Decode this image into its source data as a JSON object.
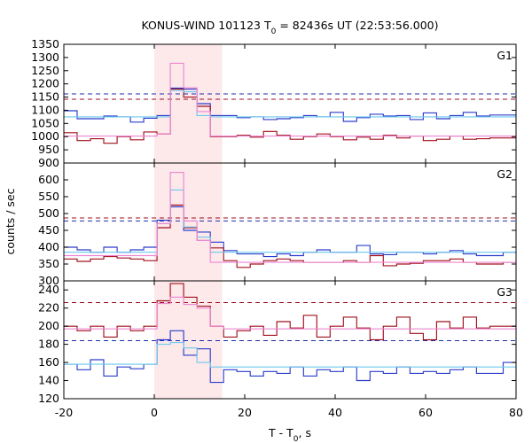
{
  "chart_data": {
    "type": "line",
    "title": {
      "main": "KONUS-WIND 101123 T",
      "sub": "0",
      "rest": " = 82436s UT (22:53:56.000)"
    },
    "xlabel": {
      "main": "T - T",
      "sub": "0",
      "rest": ", s"
    },
    "ylabel": "counts / sec",
    "xlim": [
      -20,
      80
    ],
    "x_ticks": [
      -20,
      0,
      20,
      40,
      60,
      80
    ],
    "highlight_interval": {
      "x": [
        0,
        15
      ],
      "color": "#fde8ea"
    },
    "bin_edges": [
      -20,
      -17.056,
      -14.112,
      -11.168,
      -8.224,
      -5.28,
      -2.336,
      0.608,
      3.552,
      6.496,
      9.44,
      12.384,
      15.328,
      18.272,
      21.216,
      24.16,
      27.104,
      30.048,
      32.992,
      35.936,
      38.88,
      41.824,
      44.768,
      47.712,
      50.656,
      53.6,
      56.544,
      59.488,
      62.432,
      65.376,
      68.32,
      71.264,
      74.208,
      77.152,
      80
    ],
    "colors": {
      "blue": "#2a3dcc",
      "dark_red": "#a0101c",
      "light_blue": "#6ec8ee",
      "pink": "#ee86d2"
    },
    "panels": [
      {
        "label": "G1",
        "ylim": [
          900,
          1350
        ],
        "y_ticks": [
          900,
          950,
          1000,
          1050,
          1100,
          1150,
          1200,
          1250,
          1300,
          1350
        ],
        "threshold_lines": [
          {
            "color": "#1a2fb0",
            "value": 1162
          },
          {
            "color": "#a0101c",
            "value": 1142
          }
        ],
        "series": [
          {
            "color": "#2a3dcc",
            "values": [
              1098,
              1068,
              1068,
              1078,
              1075,
              1055,
              1070,
              1080,
              1184,
              1180,
              1125,
              1080,
              1080,
              1072,
              1075,
              1065,
              1068,
              1072,
              1080,
              1075,
              1092,
              1058,
              1072,
              1085,
              1078,
              1080,
              1065,
              1090,
              1068,
              1080,
              1092,
              1078,
              1082,
              1082
            ]
          },
          {
            "color": "#a0101c",
            "values": [
              1015,
              985,
              992,
              975,
              1000,
              988,
              1018,
              1010,
              1180,
              1150,
              1115,
              1000,
              1000,
              1005,
              998,
              1020,
              1005,
              990,
              1000,
              1010,
              1000,
              988,
              998,
              990,
              1005,
              995,
              1002,
              985,
              990,
              1002,
              990,
              992,
              995,
              995
            ]
          },
          {
            "color": "#6ec8ee",
            "values": [
              1075,
              1075,
              1075,
              1075,
              1075,
              1075,
              1075,
              1075,
              1175,
              1170,
              1080,
              1075,
              1075,
              1075,
              1075,
              1075,
              1075,
              1075,
              1075,
              1075,
              1075,
              1075,
              1075,
              1075,
              1075,
              1075,
              1075,
              1075,
              1075,
              1075,
              1075,
              1075,
              1075,
              1075
            ]
          },
          {
            "color": "#ee86d2",
            "values": [
              1002,
              1002,
              1002,
              1002,
              1002,
              1002,
              1002,
              1010,
              1278,
              1185,
              1095,
              1002,
              1002,
              1002,
              1002,
              1002,
              1002,
              1002,
              1002,
              1002,
              1002,
              1002,
              1002,
              1002,
              1002,
              1002,
              1002,
              1002,
              1002,
              1002,
              1002,
              1002,
              1002,
              1002
            ]
          }
        ]
      },
      {
        "label": "G2",
        "ylim": [
          300,
          650
        ],
        "y_ticks": [
          300,
          350,
          400,
          450,
          500,
          550,
          600
        ],
        "threshold_lines": [
          {
            "color": "#1a2fb0",
            "value": 478
          },
          {
            "color": "#a0101c",
            "value": 487
          }
        ],
        "series": [
          {
            "color": "#2a3dcc",
            "values": [
              400,
              392,
              385,
              400,
              385,
              392,
              400,
              480,
              520,
              450,
              445,
              415,
              390,
              380,
              380,
              372,
              380,
              375,
              385,
              392,
              385,
              385,
              405,
              380,
              378,
              385,
              385,
              380,
              385,
              390,
              380,
              375,
              375,
              385
            ]
          },
          {
            "color": "#a0101c",
            "values": [
              365,
              358,
              365,
              372,
              368,
              365,
              360,
              458,
              525,
              458,
              420,
              398,
              360,
              340,
              350,
              360,
              365,
              360,
              355,
              355,
              355,
              360,
              355,
              375,
              345,
              350,
              352,
              360,
              360,
              365,
              355,
              350,
              350,
              355
            ]
          },
          {
            "color": "#6ec8ee",
            "values": [
              385,
              385,
              385,
              385,
              385,
              385,
              385,
              470,
              570,
              460,
              430,
              385,
              385,
              385,
              385,
              385,
              385,
              385,
              385,
              385,
              385,
              385,
              385,
              385,
              385,
              385,
              385,
              385,
              385,
              385,
              385,
              385,
              385,
              385
            ]
          },
          {
            "color": "#ee86d2",
            "values": [
              375,
              375,
              375,
              375,
              375,
              375,
              375,
              470,
              622,
              478,
              420,
              355,
              355,
              355,
              355,
              355,
              355,
              355,
              355,
              355,
              355,
              355,
              355,
              355,
              355,
              355,
              355,
              355,
              355,
              355,
              355,
              355,
              355,
              355
            ]
          }
        ]
      },
      {
        "label": "G3",
        "ylim": [
          120,
          250
        ],
        "y_ticks": [
          120,
          140,
          160,
          180,
          200,
          220,
          240
        ],
        "threshold_lines": [
          {
            "color": "#1a2fb0",
            "value": 184
          },
          {
            "color": "#a0101c",
            "value": 226
          }
        ],
        "series": [
          {
            "color": "#2a3dcc",
            "values": [
              158,
              152,
              163,
              145,
              155,
              153,
              158,
              185,
              195,
              168,
              175,
              138,
              152,
              150,
              145,
              150,
              148,
              155,
              145,
              152,
              150,
              155,
              140,
              150,
              148,
              155,
              148,
              150,
              148,
              152,
              155,
              148,
              148,
              160
            ]
          },
          {
            "color": "#a0101c",
            "values": [
              200,
              195,
              200,
              188,
              200,
              195,
              200,
              228,
              247,
              232,
              222,
              200,
              188,
              195,
              200,
              190,
              205,
              198,
              212,
              188,
              200,
              210,
              198,
              185,
              200,
              210,
              192,
              185,
              205,
              198,
              210,
              198,
              200,
              200
            ]
          },
          {
            "color": "#6ec8ee",
            "values": [
              158,
              158,
              158,
              158,
              158,
              158,
              158,
              180,
              182,
              176,
              160,
              155,
              155,
              155,
              155,
              155,
              155,
              155,
              155,
              155,
              155,
              155,
              155,
              155,
              155,
              155,
              155,
              155,
              155,
              155,
              155,
              155,
              155,
              155
            ]
          },
          {
            "color": "#ee86d2",
            "values": [
              197,
              197,
              197,
              197,
              197,
              197,
              197,
              225,
              232,
              224,
              220,
              200,
              197,
              197,
              197,
              197,
              197,
              197,
              197,
              197,
              197,
              197,
              197,
              197,
              197,
              197,
              197,
              197,
              197,
              197,
              197,
              197,
              197,
              197
            ]
          }
        ]
      }
    ]
  }
}
